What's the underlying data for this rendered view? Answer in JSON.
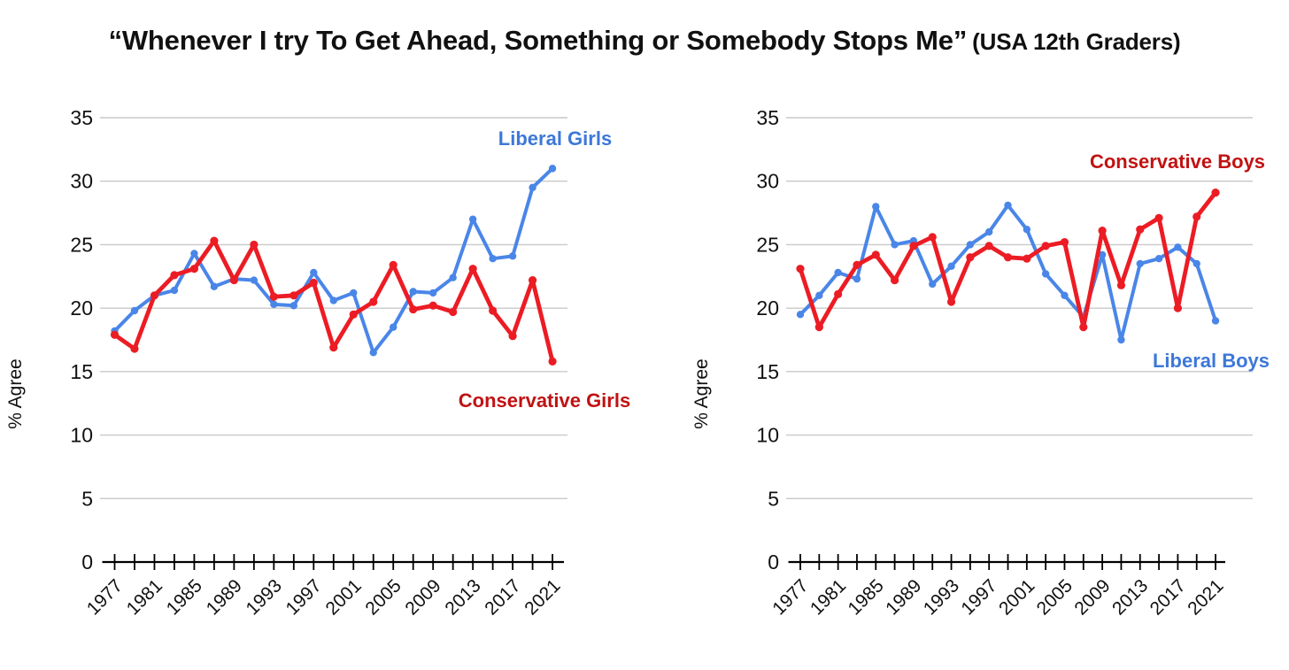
{
  "title": {
    "main": "“Whenever I try To Get Ahead, Something or Somebody Stops Me”",
    "suffix": "(USA 12th Graders)"
  },
  "colors": {
    "liberal_line": "#4a86e8",
    "liberal_label": "#3d78d8",
    "conservative_line": "#ec1c24",
    "conservative_label": "#c11212",
    "gridline": "#c9c9c9",
    "axis": "#000000",
    "tick_text": "#111111"
  },
  "chart_data": [
    {
      "type": "line",
      "name": "girls-chart",
      "ylabel": "% Agree",
      "ylim": [
        0,
        35
      ],
      "yticks": [
        0,
        5,
        10,
        15,
        20,
        25,
        30,
        35
      ],
      "grid": true,
      "legend_position": "inline-labels",
      "x": [
        1977,
        1979,
        1981,
        1983,
        1985,
        1987,
        1989,
        1991,
        1993,
        1995,
        1997,
        1999,
        2001,
        2003,
        2005,
        2007,
        2009,
        2011,
        2013,
        2015,
        2017,
        2019,
        2021
      ],
      "x_tick_labels_shown": [
        "1977",
        "1981",
        "1985",
        "1989",
        "1993",
        "1997",
        "2001",
        "2005",
        "2009",
        "2013",
        "2017",
        "2021"
      ],
      "series": [
        {
          "name": "Liberal Girls",
          "color": "#4a86e8",
          "label_color": "#3d78d8",
          "values": [
            18.2,
            19.8,
            21.0,
            21.4,
            24.3,
            21.7,
            22.3,
            22.2,
            20.3,
            20.2,
            22.8,
            20.6,
            21.2,
            16.5,
            18.5,
            21.3,
            21.2,
            22.4,
            27.0,
            23.9,
            24.1,
            29.5,
            31.0
          ]
        },
        {
          "name": "Conservative Girls",
          "color": "#ec1c24",
          "label_color": "#c11212",
          "values": [
            17.9,
            16.8,
            21.0,
            22.6,
            23.1,
            25.3,
            22.2,
            25.0,
            20.9,
            21.0,
            22.0,
            16.9,
            19.5,
            20.5,
            23.4,
            19.9,
            20.2,
            19.7,
            23.1,
            19.8,
            17.8,
            22.2,
            15.8
          ]
        }
      ]
    },
    {
      "type": "line",
      "name": "boys-chart",
      "ylabel": "% Agree",
      "ylim": [
        0,
        35
      ],
      "yticks": [
        0,
        5,
        10,
        15,
        20,
        25,
        30,
        35
      ],
      "grid": true,
      "legend_position": "inline-labels",
      "x": [
        1977,
        1979,
        1981,
        1983,
        1985,
        1987,
        1989,
        1991,
        1993,
        1995,
        1997,
        1999,
        2001,
        2003,
        2005,
        2007,
        2009,
        2011,
        2013,
        2015,
        2017,
        2019,
        2021
      ],
      "x_tick_labels_shown": [
        "1977",
        "1981",
        "1985",
        "1989",
        "1993",
        "1997",
        "2001",
        "2005",
        "2009",
        "2013",
        "2017",
        "2021"
      ],
      "series": [
        {
          "name": "Liberal Boys",
          "color": "#4a86e8",
          "label_color": "#3d78d8",
          "values": [
            19.5,
            21.0,
            22.8,
            22.3,
            28.0,
            25.0,
            25.3,
            21.9,
            23.3,
            25.0,
            26.0,
            28.1,
            26.2,
            22.7,
            21.0,
            19.3,
            24.2,
            17.5,
            23.5,
            23.9,
            24.8,
            23.5,
            19.0
          ]
        },
        {
          "name": "Conservative Boys",
          "color": "#ec1c24",
          "label_color": "#c11212",
          "values": [
            23.1,
            18.5,
            21.1,
            23.4,
            24.2,
            22.2,
            24.9,
            25.6,
            20.5,
            24.0,
            24.9,
            24.0,
            23.9,
            24.9,
            25.2,
            18.5,
            26.1,
            21.8,
            26.2,
            27.1,
            20.0,
            27.2,
            29.1
          ]
        }
      ]
    }
  ]
}
